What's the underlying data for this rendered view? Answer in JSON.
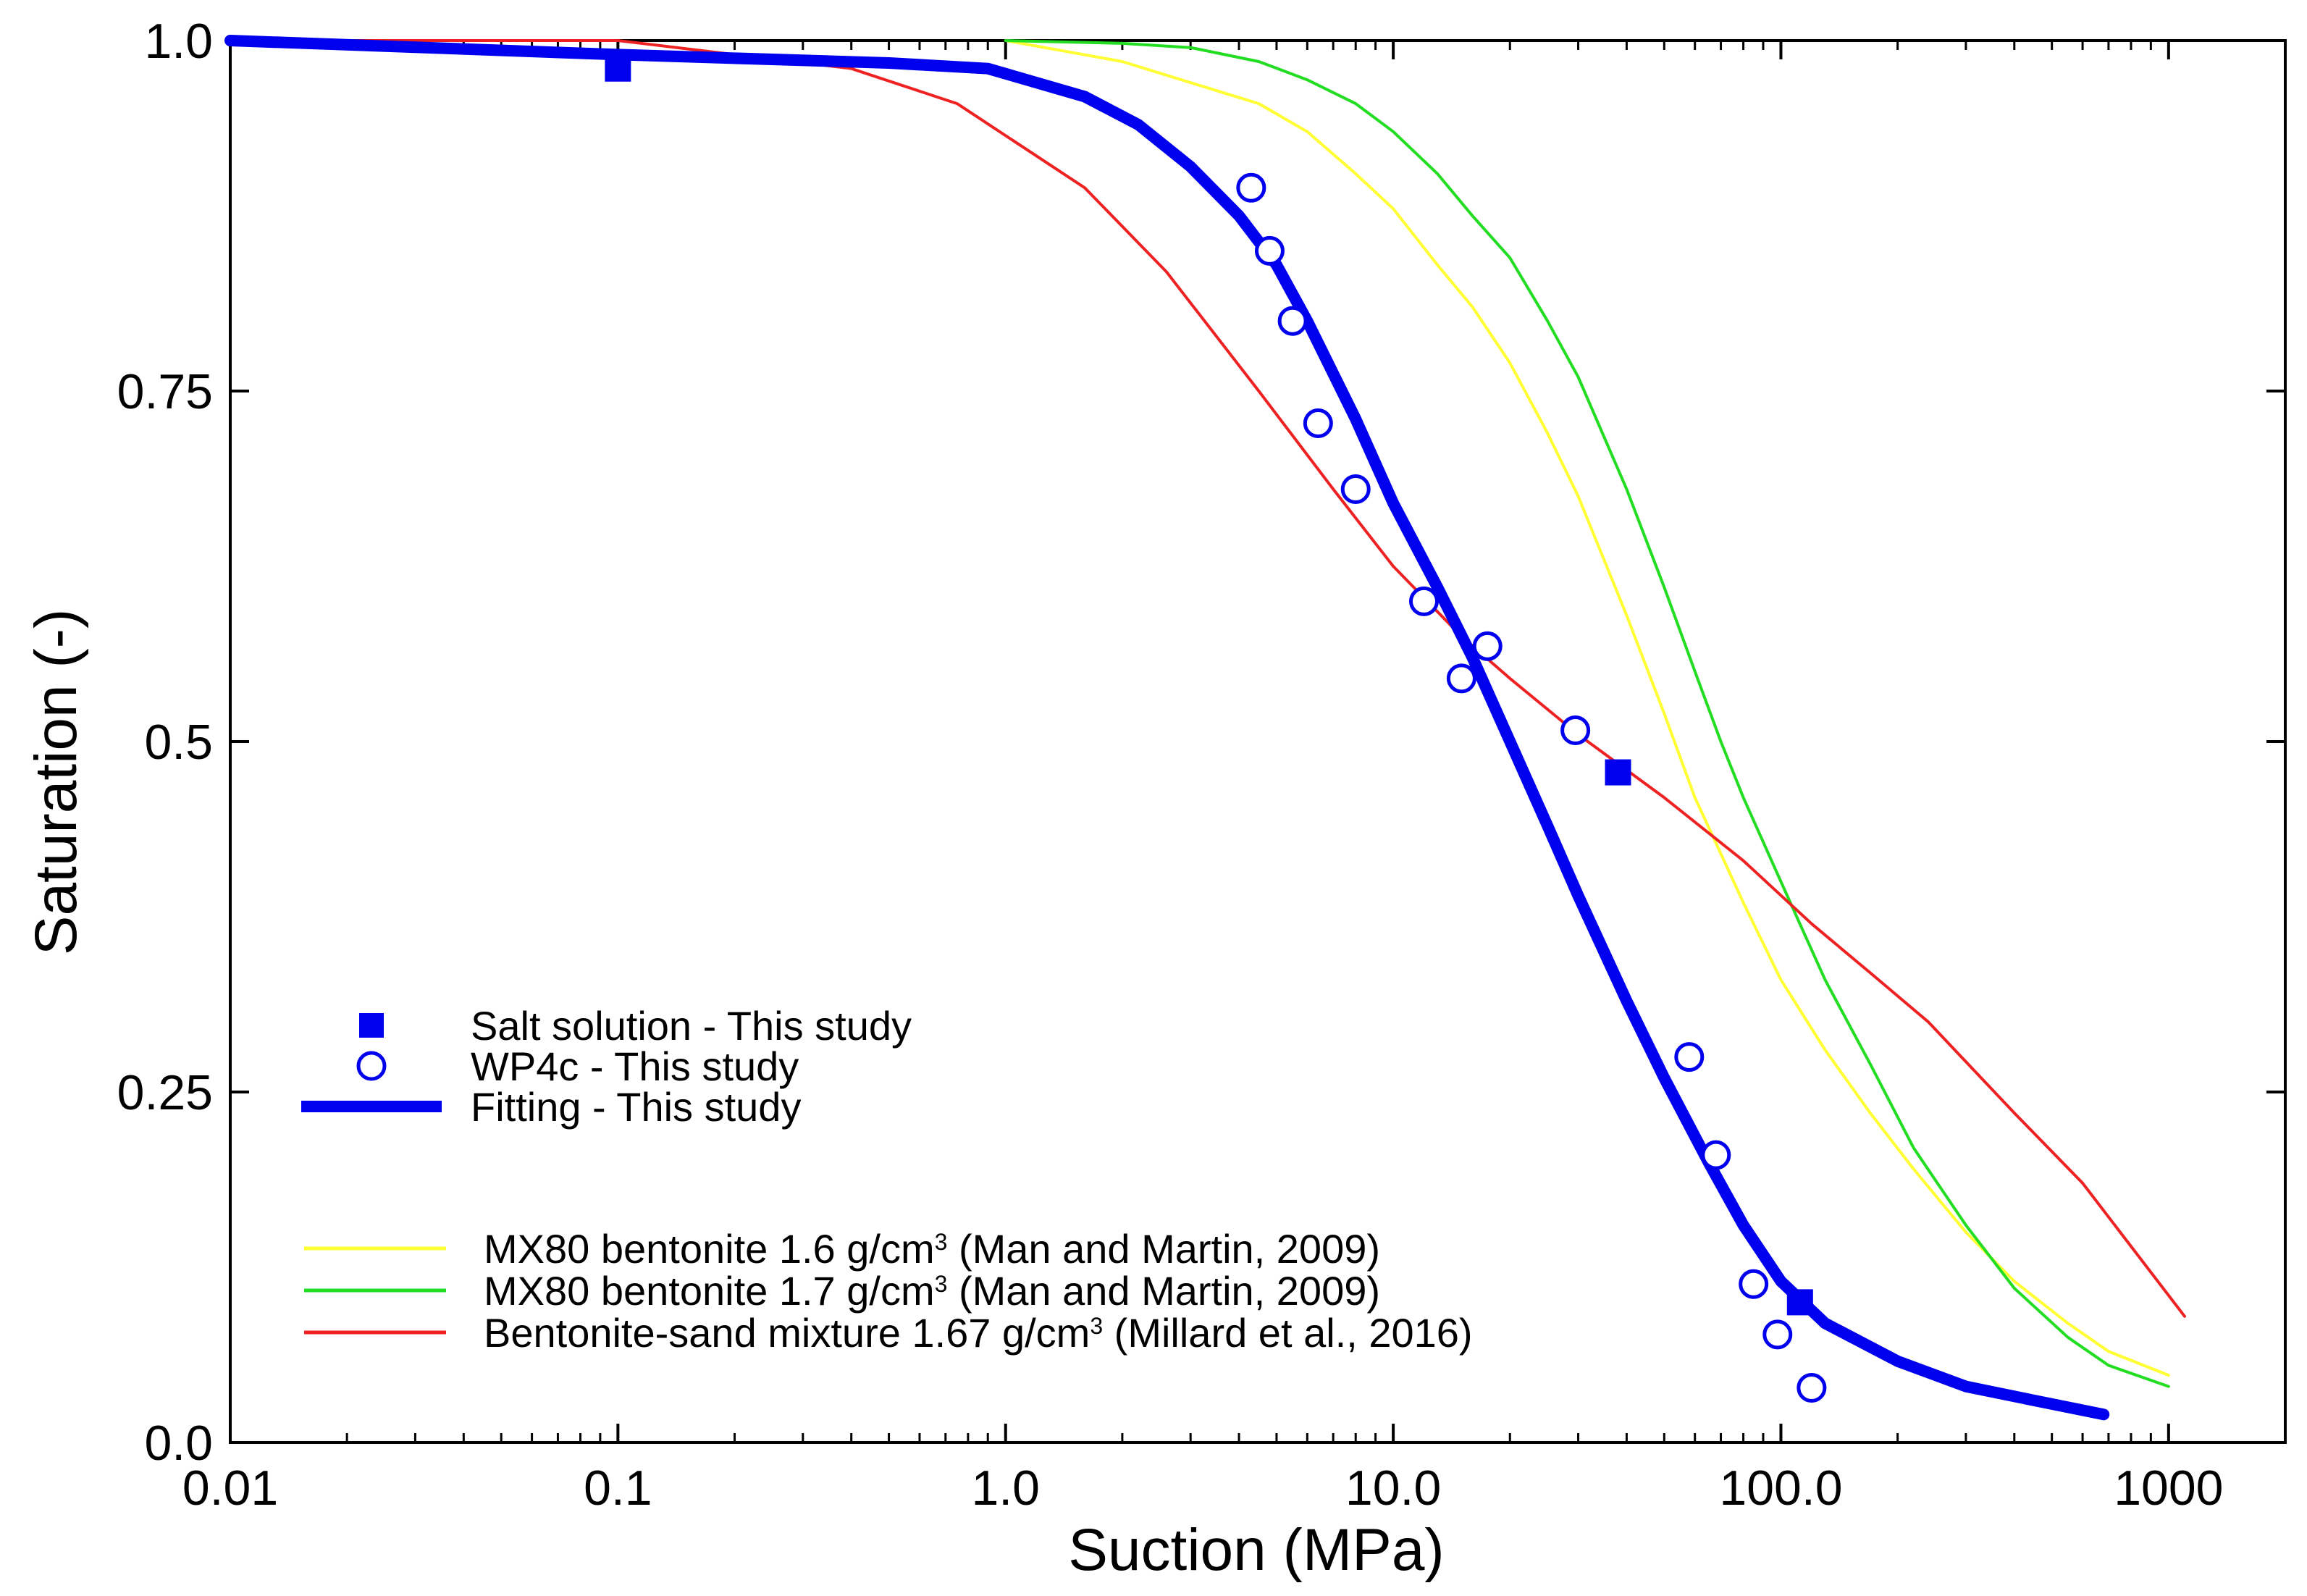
{
  "chart_data": {
    "type": "scatter",
    "title": "",
    "xlabel": "Suction  (MPa)",
    "ylabel": "Saturation  (-)",
    "xscale": "log",
    "xlim": [
      0.01,
      2000
    ],
    "ylim": [
      0.0,
      1.0
    ],
    "grid": false,
    "legend_position": "bottom-left",
    "x_ticks": [
      {
        "value": 0.01,
        "label": "0.01"
      },
      {
        "value": 0.1,
        "label": "0.1"
      },
      {
        "value": 1,
        "label": "1.0"
      },
      {
        "value": 10,
        "label": "10.0"
      },
      {
        "value": 100,
        "label": "100.0"
      },
      {
        "value": 1000,
        "label": "1000"
      }
    ],
    "y_ticks": [
      {
        "value": 0.0,
        "label": "0.0"
      },
      {
        "value": 0.25,
        "label": "0.25"
      },
      {
        "value": 0.5,
        "label": "0.5"
      },
      {
        "value": 0.75,
        "label": "0.75"
      },
      {
        "value": 1.0,
        "label": "1.0"
      }
    ],
    "series": [
      {
        "name": "Salt solution - This study",
        "kind": "square-marker",
        "color": "#0000ee",
        "x": [
          0.1,
          38,
          112
        ],
        "y": [
          0.98,
          0.478,
          0.1
        ]
      },
      {
        "name": "WP4c - This study",
        "kind": "circle-marker",
        "color": "#0000ee",
        "x": [
          4.3,
          4.8,
          5.5,
          6.4,
          8.0,
          12,
          15,
          17.5,
          29.5,
          58,
          68,
          85,
          98,
          120
        ],
        "y": [
          0.895,
          0.85,
          0.8,
          0.727,
          0.68,
          0.6,
          0.545,
          0.568,
          0.508,
          0.275,
          0.205,
          0.113,
          0.077,
          0.039
        ]
      },
      {
        "name": "Fitting - This study",
        "kind": "thick-line",
        "color": "#0000ee",
        "x": [
          0.01,
          0.1,
          0.5,
          0.9,
          1.6,
          2.2,
          3.0,
          4.0,
          5.0,
          6.0,
          8.0,
          10,
          13,
          16,
          20,
          25,
          30,
          40,
          50,
          65,
          80,
          100,
          130,
          200,
          300,
          450,
          680
        ],
        "y": [
          1.0,
          0.99,
          0.984,
          0.98,
          0.96,
          0.94,
          0.91,
          0.875,
          0.84,
          0.8,
          0.73,
          0.67,
          0.61,
          0.56,
          0.5,
          0.44,
          0.39,
          0.315,
          0.26,
          0.2,
          0.155,
          0.115,
          0.085,
          0.058,
          0.04,
          0.03,
          0.02
        ]
      },
      {
        "name": "MX80 bentonite 1.6   g/cm",
        "kind": "line",
        "color": "#ffff33",
        "x": [
          1.0,
          2.0,
          3.0,
          4.5,
          6.0,
          8.0,
          10,
          13,
          16,
          20,
          25,
          30,
          40,
          50,
          60,
          70,
          80,
          100,
          130,
          170,
          220,
          300,
          400,
          550,
          700,
          1000
        ],
        "y": [
          1.0,
          0.985,
          0.97,
          0.955,
          0.935,
          0.905,
          0.88,
          0.84,
          0.81,
          0.77,
          0.72,
          0.675,
          0.59,
          0.52,
          0.46,
          0.42,
          0.385,
          0.33,
          0.28,
          0.235,
          0.195,
          0.15,
          0.115,
          0.085,
          0.065,
          0.048
        ]
      },
      {
        "name": "MX80 bentonite 1.7   g/cm",
        "kind": "line",
        "color": "#22dd22",
        "x": [
          1.0,
          2.0,
          3.0,
          4.5,
          6.0,
          8.0,
          10,
          13,
          16,
          20,
          25,
          30,
          40,
          50,
          60,
          70,
          80,
          100,
          130,
          170,
          220,
          300,
          400,
          550,
          700,
          1000
        ],
        "y": [
          1.0,
          0.998,
          0.995,
          0.985,
          0.972,
          0.955,
          0.935,
          0.905,
          0.875,
          0.845,
          0.8,
          0.76,
          0.68,
          0.61,
          0.55,
          0.5,
          0.46,
          0.4,
          0.33,
          0.27,
          0.21,
          0.155,
          0.11,
          0.075,
          0.055,
          0.04
        ]
      },
      {
        "name": "Bentonite-sand mixture 1.67 g/cm",
        "kind": "line",
        "color": "#ee2222",
        "x": [
          0.01,
          0.05,
          0.1,
          0.2,
          0.4,
          0.75,
          1.6,
          2.6,
          4.5,
          7.0,
          10,
          15,
          20,
          30,
          50,
          80,
          120,
          170,
          240,
          400,
          600,
          1100
        ],
        "y": [
          1.0,
          1.0,
          1.0,
          0.99,
          0.98,
          0.955,
          0.895,
          0.835,
          0.75,
          0.68,
          0.625,
          0.575,
          0.545,
          0.505,
          0.46,
          0.415,
          0.37,
          0.335,
          0.3,
          0.235,
          0.185,
          0.09
        ]
      }
    ],
    "legend": {
      "group1": [
        {
          "label": "Salt solution  -  This  study",
          "marker": "square"
        },
        {
          "label": "WP4c  -  This  study",
          "marker": "circle"
        },
        {
          "label": "Fitting  -  This  study",
          "marker": "thick-line"
        }
      ],
      "group2": [
        {
          "label": "MX80  bentonite  1.6    g/cm",
          "sup": "3",
          "tail": " (Man  and  Martin,  2009)",
          "color": "#ffff33"
        },
        {
          "label": "MX80  bentonite  1.7    g/cm",
          "sup": "3",
          "tail": " (Man  and  Martin,  2009)",
          "color": "#22dd22"
        },
        {
          "label": "Bentonite-sand  mixture  1.67  g/cm",
          "sup": "3",
          "tail": " (Millard  et  al.,  2016)",
          "color": "#ee2222"
        }
      ]
    }
  }
}
